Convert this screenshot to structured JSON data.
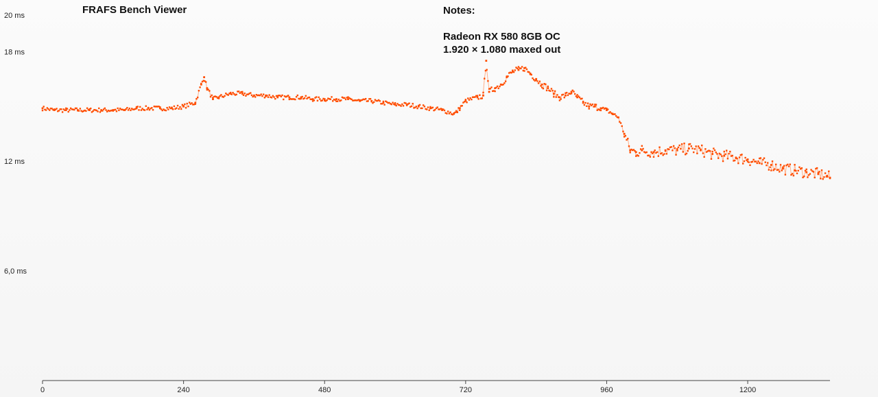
{
  "app": {
    "title": "FRAFS Bench Viewer"
  },
  "notes": {
    "heading": "Notes:",
    "lines": [
      "Radeon RX 580 8GB OC",
      "1.920 × 1.080 maxed out"
    ]
  },
  "chart_data": {
    "type": "scatter",
    "title": "",
    "xlabel": "",
    "ylabel": "",
    "xlim": [
      0,
      1340
    ],
    "ylim": [
      0,
      20
    ],
    "x_ticks": [
      {
        "value": 0,
        "label": "0"
      },
      {
        "value": 240,
        "label": "240"
      },
      {
        "value": 480,
        "label": "480"
      },
      {
        "value": 720,
        "label": "720"
      },
      {
        "value": 960,
        "label": "960"
      },
      {
        "value": 1200,
        "label": "1200"
      }
    ],
    "y_ticks": [
      {
        "value": 20,
        "label": "20 ms"
      },
      {
        "value": 18,
        "label": "18 ms"
      },
      {
        "value": 12,
        "label": "12 ms"
      },
      {
        "value": 6,
        "label": "6,0 ms"
      }
    ],
    "grid": false,
    "legend": "none",
    "marker_color": "#ff4d00",
    "line_color": "#ffb08a",
    "series": [
      {
        "x": [
          0,
          20,
          40,
          60,
          80,
          100,
          120,
          140,
          160,
          180,
          200,
          220,
          240,
          260,
          270,
          275,
          280,
          290,
          300,
          320,
          340,
          360,
          380,
          400,
          420,
          440,
          460,
          480,
          500,
          520,
          540,
          560,
          580,
          600,
          620,
          640,
          660,
          680,
          700,
          705,
          710,
          720,
          740,
          750,
          755,
          760,
          770,
          780,
          790,
          800,
          810,
          820,
          830,
          840,
          850,
          860,
          870,
          880,
          890,
          900,
          910,
          920,
          930,
          940,
          950,
          960,
          970,
          980,
          990,
          1000,
          1010,
          1020,
          1040,
          1060,
          1080,
          1100,
          1120,
          1140,
          1160,
          1180,
          1200,
          1220,
          1240,
          1260,
          1280,
          1300,
          1320,
          1335,
          1340
        ],
        "y": [
          14.9,
          14.8,
          14.8,
          14.8,
          14.8,
          14.8,
          14.8,
          14.8,
          14.9,
          14.9,
          14.9,
          14.9,
          15.0,
          15.2,
          16.2,
          16.6,
          16.0,
          15.4,
          15.5,
          15.7,
          15.7,
          15.6,
          15.6,
          15.5,
          15.5,
          15.5,
          15.4,
          15.4,
          15.4,
          15.4,
          15.3,
          15.3,
          15.2,
          15.1,
          15.1,
          15.0,
          14.9,
          14.8,
          14.6,
          14.7,
          14.9,
          15.3,
          15.5,
          15.6,
          17.5,
          15.8,
          16.0,
          16.2,
          16.6,
          16.9,
          17.0,
          17.1,
          16.8,
          16.5,
          16.2,
          16.0,
          15.7,
          15.5,
          15.6,
          15.8,
          15.5,
          15.2,
          15.0,
          15.0,
          14.9,
          14.8,
          14.6,
          14.4,
          13.5,
          12.6,
          12.5,
          12.6,
          12.5,
          12.6,
          12.6,
          12.7,
          12.6,
          12.4,
          12.3,
          12.2,
          12.1,
          11.9,
          11.8,
          11.6,
          11.5,
          11.4,
          11.3,
          11.2,
          11.1
        ]
      }
    ]
  }
}
